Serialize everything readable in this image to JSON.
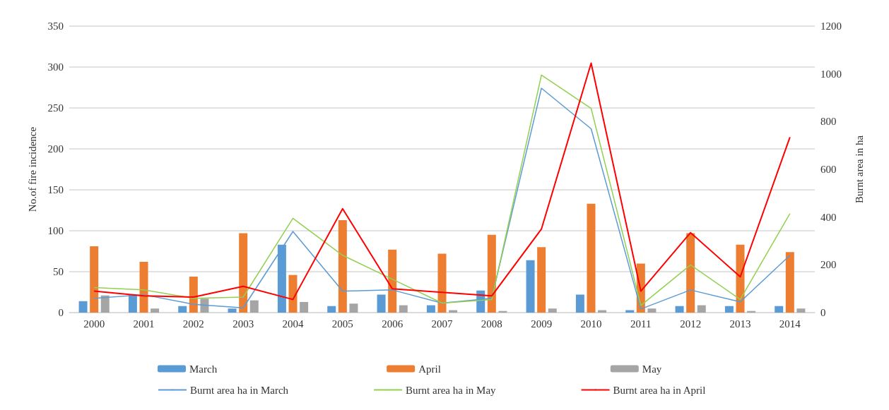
{
  "chart_data": {
    "type": "bar",
    "ylabel": "No.of fire incidence",
    "y2label": "Burnt area in ha",
    "categories": [
      "2000",
      "2001",
      "2002",
      "2003",
      "2004",
      "2005",
      "2006",
      "2007",
      "2008",
      "2009",
      "2010",
      "2011",
      "2012",
      "2013",
      "2014"
    ],
    "series": [
      {
        "name": "March",
        "color": "#5b9bd5",
        "values": [
          14,
          22,
          8,
          5,
          83,
          8,
          22,
          9,
          27,
          64,
          22,
          3,
          8,
          8,
          8
        ]
      },
      {
        "name": "April",
        "color": "#ed7d31",
        "values": [
          81,
          62,
          44,
          97,
          46,
          113,
          77,
          72,
          95,
          80,
          133,
          60,
          97,
          83,
          74
        ]
      },
      {
        "name": "May",
        "color": "#a5a5a5",
        "values": [
          21,
          5,
          17,
          15,
          13,
          11,
          9,
          3,
          2,
          5,
          3,
          5,
          9,
          2,
          5
        ]
      },
      {
        "name": "Burnt area ha in March",
        "type": "line",
        "axis": "y2",
        "color": "#5b9bd5",
        "values": [
          60,
          75,
          35,
          20,
          340,
          90,
          95,
          40,
          60,
          940,
          770,
          15,
          95,
          45,
          240
        ]
      },
      {
        "name": "Burnt area ha in May",
        "type": "line",
        "axis": "y2",
        "color": "#92d050",
        "values": [
          105,
          95,
          60,
          65,
          395,
          240,
          140,
          40,
          55,
          995,
          855,
          30,
          200,
          55,
          415
        ]
      },
      {
        "name": "Burnt area ha in April",
        "type": "line",
        "axis": "y2",
        "color": "#ff0000",
        "values": [
          90,
          70,
          65,
          110,
          55,
          435,
          100,
          85,
          70,
          350,
          1045,
          90,
          335,
          150,
          735
        ]
      }
    ],
    "ylim": [
      0,
      350
    ],
    "yticks": [
      0,
      50,
      100,
      150,
      200,
      250,
      300,
      350
    ],
    "y2lim": [
      0,
      1200
    ],
    "y2ticks": [
      0,
      200,
      400,
      600,
      800,
      1000,
      1200
    ],
    "grid": "y",
    "legend": "bottom",
    "marker": "none"
  }
}
